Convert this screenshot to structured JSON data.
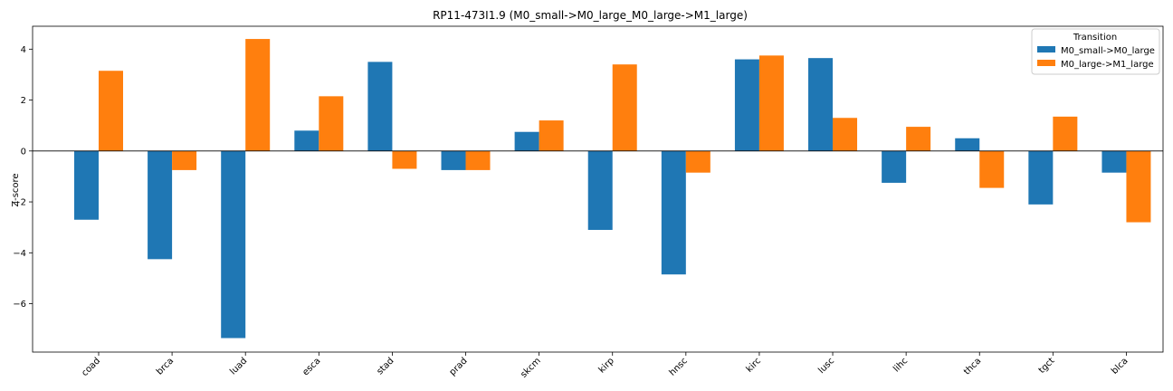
{
  "chart_data": {
    "type": "bar",
    "title": "RP11-473I1.9 (M0_small->M0_large_M0_large->M1_large)",
    "xlabel": "",
    "ylabel": "Z-score",
    "categories": [
      "coad",
      "brca",
      "luad",
      "esca",
      "stad",
      "prad",
      "skcm",
      "kirp",
      "hnsc",
      "kirc",
      "lusc",
      "lihc",
      "thca",
      "tgct",
      "blca"
    ],
    "series": [
      {
        "name": "M0_small->M0_large",
        "color": "#1f77b4",
        "values": [
          -2.7,
          -4.25,
          -7.35,
          0.8,
          3.5,
          -0.75,
          0.75,
          -3.1,
          -4.85,
          3.6,
          3.65,
          -1.25,
          0.5,
          -2.1,
          -0.85
        ]
      },
      {
        "name": "M0_large->M1_large",
        "color": "#ff7f0e",
        "values": [
          3.15,
          -0.75,
          4.4,
          2.15,
          -0.7,
          -0.75,
          1.2,
          3.4,
          -0.85,
          3.75,
          1.3,
          0.95,
          -1.45,
          1.35,
          -2.8
        ]
      }
    ],
    "ylim": [
      -7.9,
      4.9
    ],
    "yticks": [
      -6,
      -4,
      -2,
      0,
      2,
      4
    ],
    "grid": false,
    "legend": {
      "title": "Transition",
      "placement": "top-right"
    }
  }
}
